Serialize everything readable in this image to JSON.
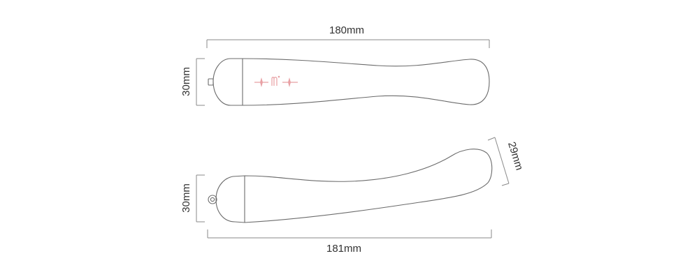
{
  "top_view": {
    "length_label": "180mm",
    "height_label": "30mm"
  },
  "side_view": {
    "length_label": "181mm",
    "height_label": "30mm",
    "tip_label": "29mm"
  },
  "colors": {
    "outline": "#6b6b6b",
    "dimension_line": "#8a8a8a",
    "text": "#333333",
    "logo": "#e8a0a4"
  }
}
